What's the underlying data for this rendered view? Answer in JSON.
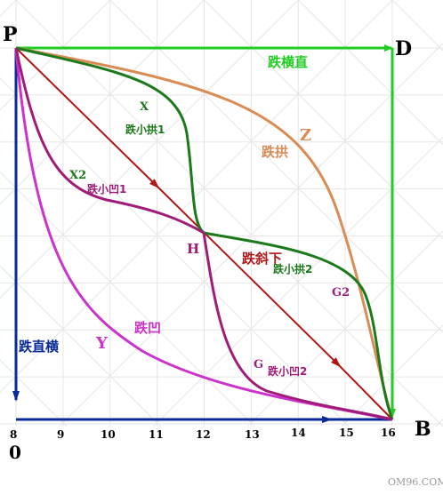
{
  "colors": {
    "grid": "#e6e6e6",
    "green_path": "#22cc22",
    "blue_path": "#0a2a9a",
    "red_path": "#b01818",
    "orange_path": "#d98c55",
    "dark_green_path": "#1c7a1c",
    "purple_path": "#a01c78",
    "magenta_path": "#cc33cc",
    "corner_label": "#000000",
    "tick_label": "#000000",
    "watermark": "#9a9a9a"
  },
  "corners": {
    "P": "P",
    "D": "D",
    "B": "B",
    "O": "0"
  },
  "ticks": [
    "8",
    "9",
    "10",
    "11",
    "12",
    "13",
    "14",
    "15",
    "16"
  ],
  "point_H": "H",
  "paths": {
    "horizontal_then_down": "跌横直",
    "down_then_horizontal": "跌直横",
    "diagonal": "跌斜下",
    "arch": "跌拱",
    "arch_letter": "Z",
    "concave": "跌凹",
    "concave_letter": "Y",
    "small_arch_1": "跌小拱1",
    "small_arch_1_letter": "X",
    "small_concave_1": "跌小凹1",
    "small_concave_1_letter": "X2",
    "small_arch_2": "跌小拱2",
    "small_arch_2_letter": "G2",
    "small_concave_2": "跌小凹2",
    "small_concave_2_letter": "G"
  },
  "watermark": "OM96.COM"
}
